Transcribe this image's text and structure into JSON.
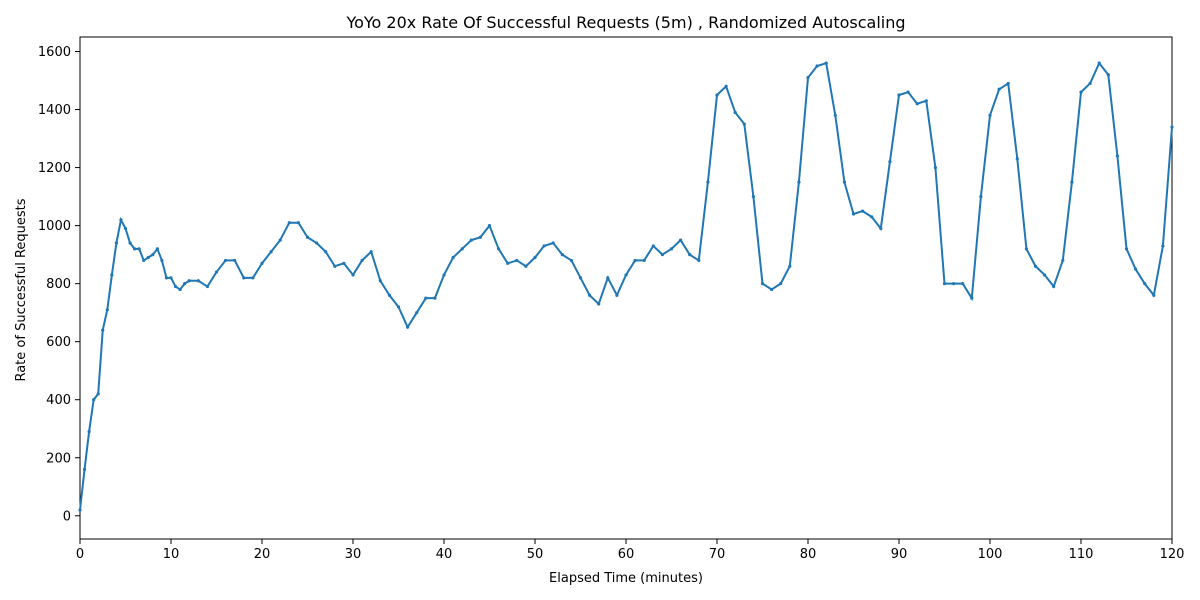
{
  "chart_data": {
    "type": "line",
    "title": "YoYo 20x Rate Of Successful Requests (5m) , Randomized Autoscaling",
    "xlabel": "Elapsed Time (minutes)",
    "ylabel": "Rate of Successful Requests",
    "xlim": [
      0,
      120
    ],
    "ylim": [
      -80,
      1650
    ],
    "xticks": [
      0,
      10,
      20,
      30,
      40,
      50,
      60,
      70,
      80,
      90,
      100,
      110,
      120
    ],
    "yticks": [
      0,
      200,
      400,
      600,
      800,
      1000,
      1200,
      1400,
      1600
    ],
    "grid": false,
    "series_color": "#1f77b4",
    "series": [
      {
        "x": [
          0,
          0.5,
          1,
          1.5,
          2,
          2.5,
          3,
          3.5,
          4,
          4.5,
          5,
          5.5,
          6,
          6.5,
          7,
          7.5,
          8,
          8.5,
          9,
          9.5,
          10,
          10.5,
          11,
          11.5,
          12,
          13,
          14,
          15,
          16,
          17,
          18,
          19,
          20,
          21,
          22,
          23,
          24,
          25,
          26,
          27,
          28,
          29,
          30,
          31,
          32,
          33,
          34,
          35,
          36,
          37,
          38,
          39,
          40,
          41,
          42,
          43,
          44,
          45,
          46,
          47,
          48,
          49,
          50,
          51,
          52,
          53,
          54,
          55,
          56,
          57,
          58,
          59,
          60,
          61,
          62,
          63,
          64,
          65,
          66,
          67,
          68,
          69,
          70,
          71,
          72,
          73,
          74,
          75,
          76,
          77,
          78,
          79,
          80,
          81,
          82,
          83,
          84,
          85,
          86,
          87,
          88,
          89,
          90,
          91,
          92,
          93,
          94,
          95,
          96,
          97,
          98,
          99,
          100,
          101,
          102,
          103,
          104,
          105,
          106,
          107,
          108,
          109,
          110,
          111,
          112,
          113,
          114,
          115,
          116,
          117,
          118,
          119,
          120
        ],
        "y": [
          20,
          160,
          290,
          400,
          420,
          640,
          710,
          830,
          940,
          1020,
          990,
          940,
          920,
          920,
          880,
          890,
          900,
          920,
          880,
          820,
          820,
          790,
          780,
          800,
          810,
          810,
          790,
          840,
          880,
          880,
          820,
          820,
          870,
          910,
          950,
          1010,
          1010,
          960,
          940,
          910,
          860,
          870,
          830,
          880,
          910,
          810,
          760,
          720,
          650,
          700,
          750,
          750,
          830,
          890,
          920,
          950,
          960,
          1000,
          920,
          870,
          880,
          860,
          890,
          930,
          940,
          900,
          880,
          820,
          760,
          730,
          820,
          760,
          830,
          880,
          880,
          930,
          900,
          920,
          950,
          900,
          880,
          1150,
          1450,
          1480,
          1390,
          1350,
          1100,
          800,
          780,
          800,
          860,
          1150,
          1510,
          1550,
          1560,
          1380,
          1150,
          1040,
          1050,
          1030,
          990,
          1220,
          1450,
          1460,
          1420,
          1430,
          1200,
          800,
          800,
          800,
          750,
          1100,
          1380,
          1470,
          1490,
          1230,
          920,
          860,
          830,
          790,
          880,
          1150,
          1460,
          1490,
          1560,
          1520,
          1240,
          920,
          850,
          800,
          760,
          930,
          1340
        ]
      }
    ]
  }
}
